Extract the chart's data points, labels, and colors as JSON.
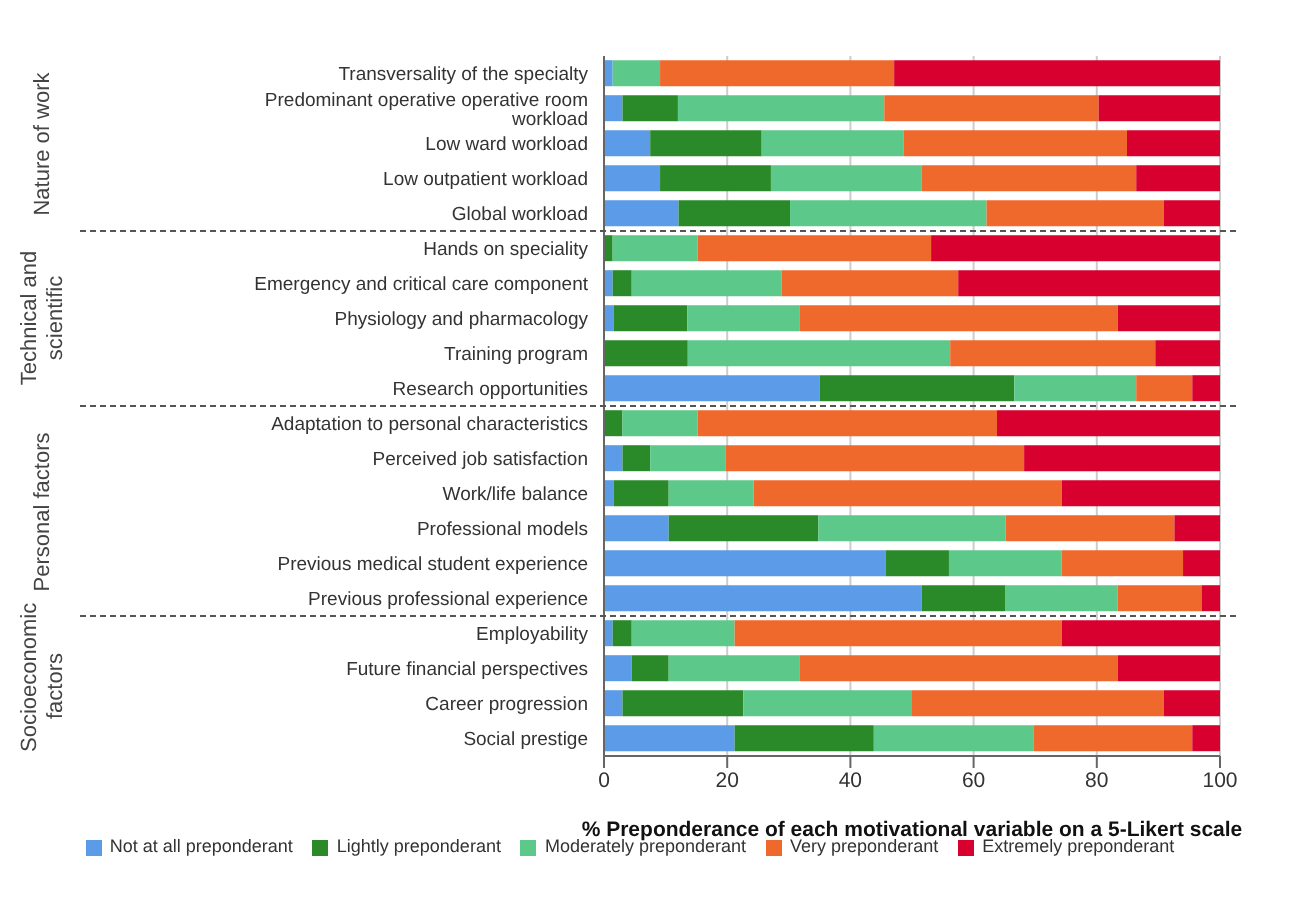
{
  "chart_data": {
    "type": "bar",
    "orientation": "horizontal",
    "stacked": true,
    "xlabel": "% Preponderance of each motivational variable on a 5-Likert scale",
    "categories": [
      "Transversality of the specialty",
      "Predominant operative operative room workload",
      "Low ward workload",
      "Low outpatient workload",
      "Global workload",
      "Hands on speciality",
      "Emergency and critical care component",
      "Physiology and pharmacology",
      "Training program",
      "Research opportunities",
      "Adaptation to personal characteristics",
      "Perceived job satisfaction",
      "Work/life balance",
      "Professional models",
      "Previous medical student experience",
      "Previous professional experience",
      "Employability",
      "Future financial perspectives",
      "Career progression",
      "Social prestige"
    ],
    "series": [
      {
        "name": "Not at all preponderant",
        "color": "#5b9be8",
        "values": [
          1.4,
          3.0,
          7.5,
          9.1,
          12.1,
          0,
          1.4,
          1.6,
          0,
          35.0,
          0,
          3.0,
          1.6,
          10.5,
          45.7,
          51.6,
          1.4,
          4.5,
          3.0,
          21.2
        ]
      },
      {
        "name": "Lightly preponderant",
        "color": "#2a8a2a",
        "values": [
          0,
          9.0,
          18.1,
          18.0,
          18.1,
          1.4,
          3.1,
          11.9,
          13.6,
          31.6,
          3.0,
          4.5,
          8.9,
          24.3,
          10.3,
          13.5,
          3.1,
          6.0,
          19.6,
          22.6
        ]
      },
      {
        "name": "Moderately preponderant",
        "color": "#5cc98a",
        "values": [
          7.7,
          33.5,
          23.0,
          24.5,
          31.9,
          13.8,
          24.3,
          18.3,
          42.6,
          19.8,
          12.2,
          12.2,
          13.8,
          30.4,
          18.3,
          18.3,
          16.7,
          21.3,
          27.4,
          25.9
        ]
      },
      {
        "name": "Very preponderant",
        "color": "#f0692c",
        "values": [
          38.0,
          34.8,
          36.3,
          34.8,
          28.8,
          37.9,
          28.7,
          51.6,
          33.3,
          9.1,
          48.6,
          48.5,
          50.0,
          27.4,
          19.7,
          13.6,
          53.1,
          51.6,
          40.9,
          25.8
        ]
      },
      {
        "name": "Extremely preponderant",
        "color": "#d8002e",
        "values": [
          52.9,
          19.7,
          15.1,
          13.6,
          9.1,
          46.9,
          42.5,
          16.6,
          10.5,
          4.5,
          36.2,
          31.8,
          25.7,
          7.4,
          6.0,
          3.0,
          25.7,
          16.6,
          9.1,
          4.5
        ]
      }
    ],
    "xlim": [
      0,
      100
    ],
    "xticks": [
      0,
      20,
      40,
      60,
      80,
      100
    ],
    "grid": "x",
    "legend": "bottom",
    "annotations": [
      "Nature of work",
      "Technical and scientific",
      "Personal factors",
      "Socioeconomic factors"
    ]
  }
}
